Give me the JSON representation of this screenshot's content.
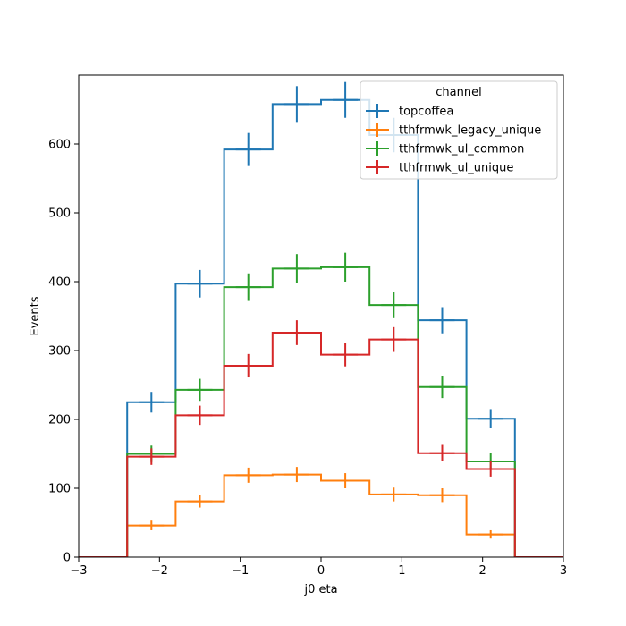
{
  "chart_data": {
    "type": "histogram",
    "xlabel": "j0 eta",
    "ylabel": "Events",
    "xlim": [
      -3,
      3
    ],
    "ylim": [
      0,
      700
    ],
    "xticks": [
      -3,
      -2,
      -1,
      0,
      1,
      2,
      3
    ],
    "xtick_labels": [
      "−3",
      "−2",
      "−1",
      "0",
      "1",
      "2",
      "3"
    ],
    "yticks": [
      0,
      100,
      200,
      300,
      400,
      500,
      600
    ],
    "ytick_labels": [
      "0",
      "100",
      "200",
      "300",
      "400",
      "500",
      "600"
    ],
    "bin_edges": [
      -3.0,
      -2.4,
      -1.8,
      -1.2,
      -0.6,
      0.0,
      0.6,
      1.2,
      1.8,
      2.4,
      3.0
    ],
    "legend": {
      "title": "channel",
      "position": "top-right"
    },
    "series": [
      {
        "name": "topcoffea",
        "color": "#1f77b4",
        "values": [
          0,
          225,
          397,
          592,
          658,
          664,
          613,
          344,
          201,
          0
        ],
        "errors": [
          0,
          15,
          20,
          24,
          26,
          26,
          25,
          19,
          14,
          0
        ]
      },
      {
        "name": "tthfrmwk_legacy_unique",
        "color": "#ff7f0e",
        "values": [
          0,
          46,
          81,
          119,
          120,
          111,
          91,
          90,
          33,
          0
        ],
        "errors": [
          0,
          7,
          9,
          11,
          11,
          11,
          10,
          10,
          6,
          0
        ]
      },
      {
        "name": "tthfrmwk_ul_common",
        "color": "#2ca02c",
        "values": [
          0,
          150,
          243,
          392,
          419,
          421,
          366,
          247,
          139,
          0
        ],
        "errors": [
          0,
          12,
          16,
          20,
          21,
          21,
          19,
          16,
          12,
          0
        ]
      },
      {
        "name": "tthfrmwk_ul_unique",
        "color": "#d62728",
        "values": [
          0,
          146,
          206,
          278,
          326,
          294,
          316,
          151,
          128,
          0
        ],
        "errors": [
          0,
          12,
          14,
          17,
          18,
          17,
          18,
          12,
          11,
          0
        ]
      }
    ]
  }
}
